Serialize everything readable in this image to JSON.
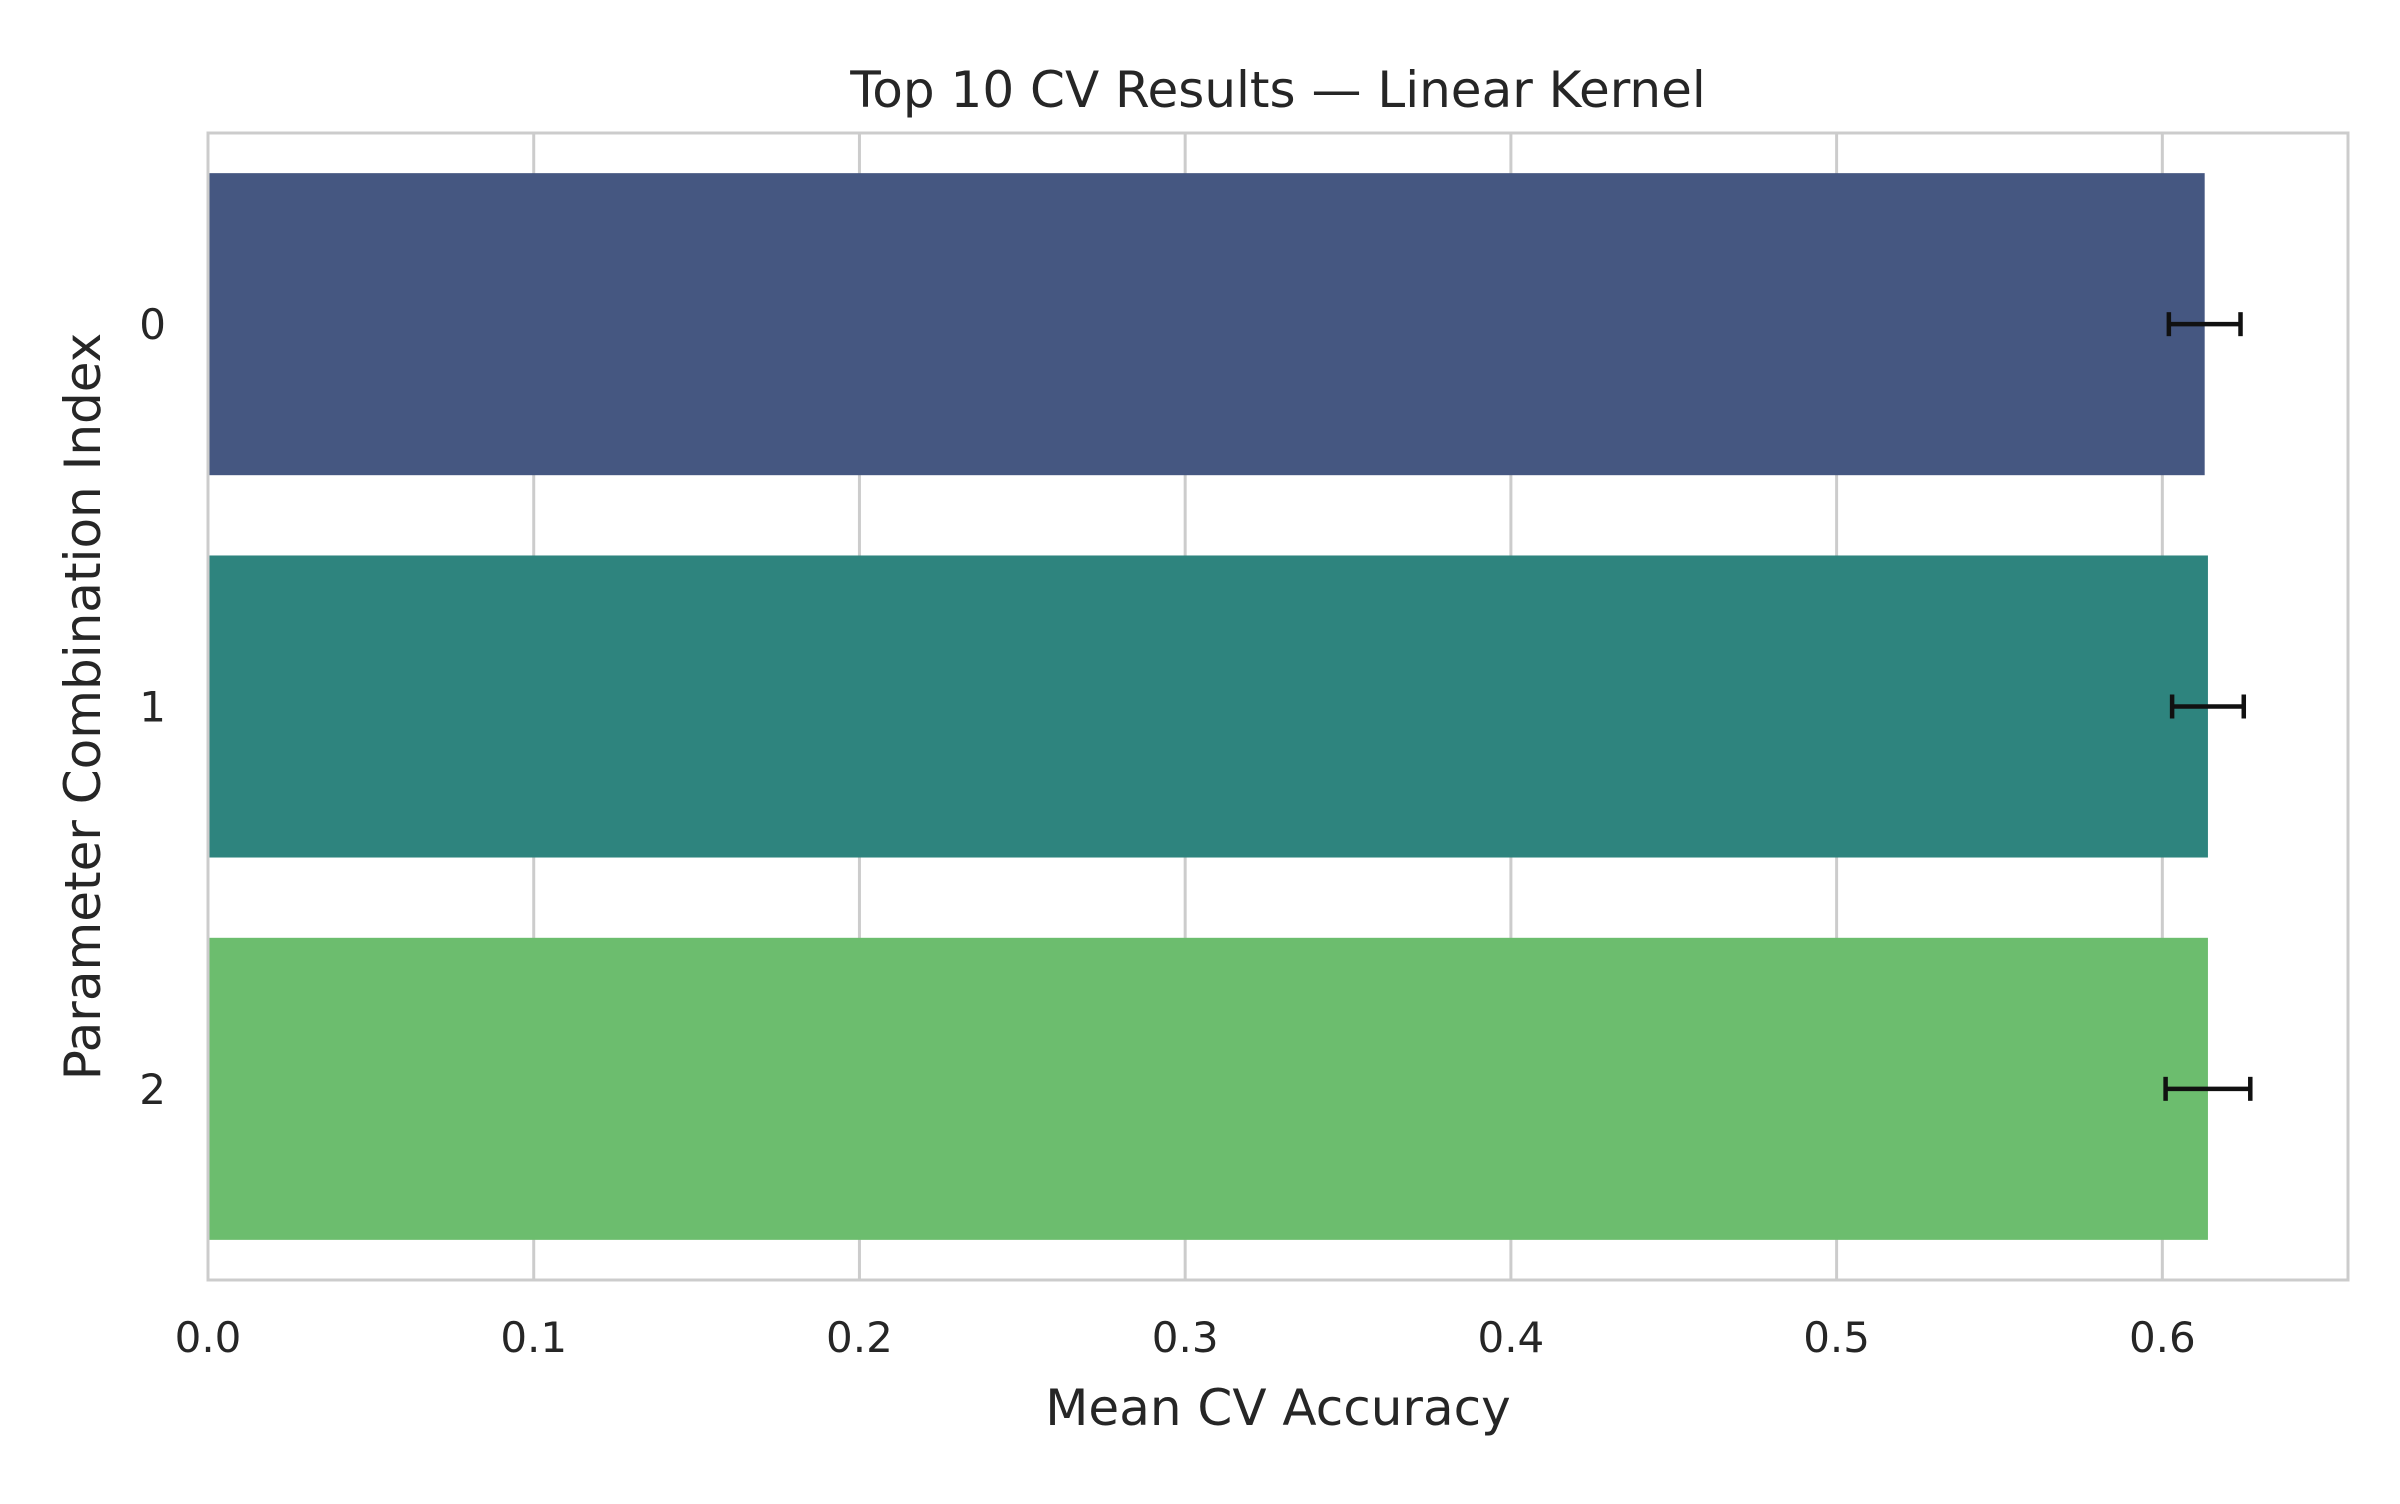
{
  "chart_data": {
    "type": "bar",
    "orientation": "horizontal",
    "title": "Top 10 CV Results — Linear Kernel",
    "xlabel": "Mean CV Accuracy",
    "ylabel": "Parameter Combination Index",
    "categories": [
      "0",
      "1",
      "2"
    ],
    "values": [
      0.613,
      0.614,
      0.614
    ],
    "errors": [
      0.011,
      0.011,
      0.013
    ],
    "colors": [
      "#455781",
      "#2e847e",
      "#6cbd6e"
    ],
    "xlim": [
      0,
      0.657
    ],
    "xticks": [
      0.0,
      0.1,
      0.2,
      0.3,
      0.4,
      0.5,
      0.6
    ],
    "xtick_labels": [
      "0.0",
      "0.1",
      "0.2",
      "0.3",
      "0.4",
      "0.5",
      "0.6"
    ],
    "grid": true,
    "legend": "none"
  }
}
